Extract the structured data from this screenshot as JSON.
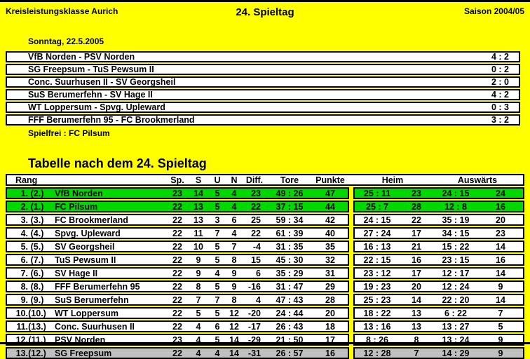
{
  "header": {
    "league": "Kreisleistungsklasse Aurich",
    "matchday_title": "24. Spieltag",
    "season": "Saison 2004/05"
  },
  "results": {
    "date": "Sonntag, 22.5.2005",
    "matches": [
      {
        "pairing": "VfB Norden - PSV Norden",
        "score": "4 : 2"
      },
      {
        "pairing": "SG Freepsum - TuS Pewsum II",
        "score": "0 : 2"
      },
      {
        "pairing": "Conc. Suurhusen II - SV Georgsheil",
        "score": "2 : 0"
      },
      {
        "pairing": "SuS Berumerfehn - SV Hage II",
        "score": "4 : 2"
      },
      {
        "pairing": "WT Loppersum - Spvg. Upleward",
        "score": "0 : 3"
      },
      {
        "pairing": "FFF Berumerfehn 95 - FC Brookmerland",
        "score": "3 : 2"
      }
    ],
    "bye": "Spielfrei : FC Pilsum"
  },
  "table": {
    "title": "Tabelle nach dem 24. Spieltag",
    "columns": {
      "rang": "Rang",
      "sp": "Sp.",
      "s": "S",
      "u": "U",
      "n": "N",
      "diff": "Diff.",
      "tore": "Tore",
      "punkte": "Punkte",
      "heim": "Heim",
      "auswaerts": "Auswärts"
    },
    "rows": [
      {
        "rank": "1.",
        "prev": "(2.)",
        "team": "VfB Norden",
        "sp": "23",
        "s": "14",
        "u": "5",
        "n": "4",
        "diff": "23",
        "tore": "49 : 26",
        "punkte": "47",
        "heim_tore": "25 : 11",
        "heim_punkte": "23",
        "aus_tore": "24 : 15",
        "aus_punkte": "24",
        "highlight": "green"
      },
      {
        "rank": "2.",
        "prev": "(1.)",
        "team": "FC Pilsum",
        "sp": "22",
        "s": "13",
        "u": "5",
        "n": "4",
        "diff": "22",
        "tore": "37 : 15",
        "punkte": "44",
        "heim_tore": "25 : 7",
        "heim_punkte": "28",
        "aus_tore": "12 : 8",
        "aus_punkte": "16",
        "highlight": "green"
      },
      {
        "rank": "3.",
        "prev": "(3.)",
        "team": "FC Brookmerland",
        "sp": "22",
        "s": "13",
        "u": "3",
        "n": "6",
        "diff": "25",
        "tore": "59 : 34",
        "punkte": "42",
        "heim_tore": "24 : 15",
        "heim_punkte": "22",
        "aus_tore": "35 : 19",
        "aus_punkte": "20",
        "highlight": ""
      },
      {
        "rank": "4.",
        "prev": "(4.)",
        "team": "Spvg. Upleward",
        "sp": "22",
        "s": "11",
        "u": "7",
        "n": "4",
        "diff": "22",
        "tore": "61 : 39",
        "punkte": "40",
        "heim_tore": "27 : 24",
        "heim_punkte": "17",
        "aus_tore": "34 : 15",
        "aus_punkte": "23",
        "highlight": ""
      },
      {
        "rank": "5.",
        "prev": "(5.)",
        "team": "SV Georgsheil",
        "sp": "22",
        "s": "10",
        "u": "5",
        "n": "7",
        "diff": "-4",
        "tore": "31 : 35",
        "punkte": "35",
        "heim_tore": "16 : 13",
        "heim_punkte": "21",
        "aus_tore": "15 : 22",
        "aus_punkte": "14",
        "highlight": ""
      },
      {
        "rank": "6.",
        "prev": "(7.)",
        "team": "TuS Pewsum II",
        "sp": "22",
        "s": "9",
        "u": "5",
        "n": "8",
        "diff": "15",
        "tore": "45 : 30",
        "punkte": "32",
        "heim_tore": "22 : 15",
        "heim_punkte": "16",
        "aus_tore": "23 : 15",
        "aus_punkte": "16",
        "highlight": ""
      },
      {
        "rank": "7.",
        "prev": "(6.)",
        "team": "SV Hage II",
        "sp": "22",
        "s": "9",
        "u": "4",
        "n": "9",
        "diff": "6",
        "tore": "35 : 29",
        "punkte": "31",
        "heim_tore": "23 : 12",
        "heim_punkte": "17",
        "aus_tore": "12 : 17",
        "aus_punkte": "14",
        "highlight": ""
      },
      {
        "rank": "8.",
        "prev": "(8.)",
        "team": "FFF Berumerfehn 95",
        "sp": "22",
        "s": "8",
        "u": "5",
        "n": "9",
        "diff": "-16",
        "tore": "31 : 47",
        "punkte": "29",
        "heim_tore": "19 : 23",
        "heim_punkte": "20",
        "aus_tore": "12 : 24",
        "aus_punkte": "9",
        "highlight": ""
      },
      {
        "rank": "9.",
        "prev": "(9.)",
        "team": "SuS Berumerfehn",
        "sp": "22",
        "s": "7",
        "u": "7",
        "n": "8",
        "diff": "4",
        "tore": "47 : 43",
        "punkte": "28",
        "heim_tore": "25 : 23",
        "heim_punkte": "14",
        "aus_tore": "22 : 20",
        "aus_punkte": "14",
        "highlight": ""
      },
      {
        "rank": "10.",
        "prev": "(10.)",
        "team": "WT Loppersum",
        "sp": "22",
        "s": "5",
        "u": "5",
        "n": "12",
        "diff": "-20",
        "tore": "24 : 44",
        "punkte": "20",
        "heim_tore": "18 : 22",
        "heim_punkte": "13",
        "aus_tore": "6 : 22",
        "aus_punkte": "7",
        "highlight": ""
      },
      {
        "rank": "11.",
        "prev": "(13.)",
        "team": "Conc. Suurhusen II",
        "sp": "22",
        "s": "4",
        "u": "6",
        "n": "12",
        "diff": "-17",
        "tore": "26 : 43",
        "punkte": "18",
        "heim_tore": "13 : 16",
        "heim_punkte": "13",
        "aus_tore": "13 : 27",
        "aus_punkte": "5",
        "highlight": ""
      },
      {
        "rank": "12.",
        "prev": "(11.)",
        "team": "PSV Norden",
        "sp": "23",
        "s": "4",
        "u": "5",
        "n": "14",
        "diff": "-29",
        "tore": "21 : 50",
        "punkte": "17",
        "heim_tore": "8 : 26",
        "heim_punkte": "8",
        "aus_tore": "13 : 24",
        "aus_punkte": "9",
        "highlight": ""
      },
      {
        "rank": "13.",
        "prev": "(12.)",
        "team": "SG Freepsum",
        "sp": "22",
        "s": "4",
        "u": "4",
        "n": "14",
        "diff": "-31",
        "tore": "26 : 57",
        "punkte": "16",
        "heim_tore": "12 : 28",
        "heim_punkte": "7",
        "aus_tore": "14 : 29",
        "aus_punkte": "9",
        "highlight": "gray"
      }
    ]
  },
  "colors": {
    "background": "#ffff00",
    "promotion_row": "#00d800",
    "relegation_row": "#c0c0c0",
    "row_background": "#ffffff",
    "border": "#000000"
  }
}
